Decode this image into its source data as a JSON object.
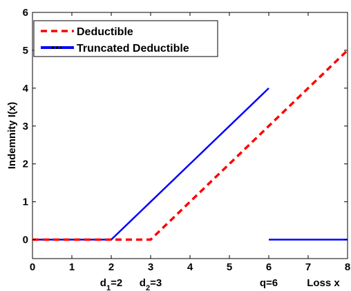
{
  "chart_data": {
    "type": "line",
    "xlabel": "Loss x",
    "ylabel": "Indemnity I(x)",
    "xlim": [
      0,
      8
    ],
    "ylim": [
      -0.5,
      6
    ],
    "xticks": [
      "0",
      "1",
      "2",
      "3",
      "4",
      "5",
      "6",
      "7",
      "8"
    ],
    "yticks": [
      "0",
      "1",
      "2",
      "3",
      "4",
      "5",
      "6"
    ],
    "grid": false,
    "legend_position": "top-left",
    "series": [
      {
        "name": "Deductible",
        "color": "#ff0000",
        "style": "dashed",
        "points": [
          [
            0,
            0
          ],
          [
            3,
            0
          ],
          [
            8,
            5
          ]
        ]
      },
      {
        "name": "Truncated Deductible",
        "color": "#0000ff",
        "style": "solid",
        "segments": [
          [
            [
              0,
              0
            ],
            [
              2,
              0
            ],
            [
              6,
              4
            ]
          ],
          [
            [
              6,
              0
            ],
            [
              8,
              0
            ]
          ]
        ]
      }
    ],
    "annotations": [
      {
        "base": "d",
        "sub": "1",
        "suffix": "=2",
        "x": 2
      },
      {
        "base": "d",
        "sub": "2",
        "suffix": "=3",
        "x": 3
      },
      {
        "base": "q=6",
        "sub": "",
        "suffix": "",
        "x": 6
      }
    ]
  }
}
